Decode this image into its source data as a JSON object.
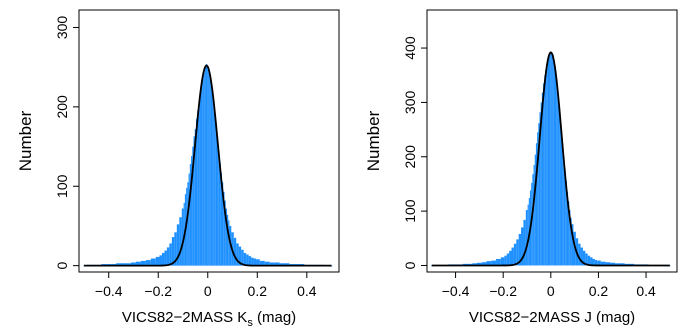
{
  "colors": {
    "histogram": "#1e90ff",
    "fit": "#000000",
    "frame": "#000000"
  },
  "chart_data": [
    {
      "type": "bar",
      "subtype": "histogram-with-gaussian-fit",
      "title": "",
      "xlabel_parts": [
        "VICS82−2MASS K",
        "s",
        " (mag)"
      ],
      "ylabel": "Number",
      "xlim": [
        -0.52,
        0.53
      ],
      "ylim": [
        -8,
        322
      ],
      "xticks": [
        -0.4,
        -0.2,
        0,
        0.2,
        0.4
      ],
      "xtick_labels": [
        "−0.4",
        "−0.2",
        "0",
        "0.2",
        "0.4"
      ],
      "yticks": [
        0,
        100,
        200,
        300
      ],
      "ytick_labels": [
        "0",
        "100",
        "200",
        "300"
      ],
      "fit": {
        "amplitude": 252,
        "mean": -0.005,
        "sigma": 0.046
      },
      "bin_width": 0.005,
      "bins": [
        [
          -0.5,
          0
        ],
        [
          -0.48,
          1
        ],
        [
          -0.46,
          1
        ],
        [
          -0.44,
          1
        ],
        [
          -0.42,
          2
        ],
        [
          -0.4,
          2
        ],
        [
          -0.38,
          2
        ],
        [
          -0.36,
          3
        ],
        [
          -0.34,
          3
        ],
        [
          -0.32,
          3
        ],
        [
          -0.3,
          4
        ],
        [
          -0.28,
          5
        ],
        [
          -0.26,
          6
        ],
        [
          -0.24,
          7
        ],
        [
          -0.22,
          9
        ],
        [
          -0.2,
          11
        ],
        [
          -0.19,
          13
        ],
        [
          -0.18,
          16
        ],
        [
          -0.17,
          19
        ],
        [
          -0.16,
          23
        ],
        [
          -0.15,
          28
        ],
        [
          -0.14,
          36
        ],
        [
          -0.13,
          42
        ],
        [
          -0.12,
          52
        ],
        [
          -0.11,
          61
        ],
        [
          -0.1,
          72
        ],
        [
          -0.095,
          79
        ],
        [
          -0.09,
          90
        ],
        [
          -0.085,
          98
        ],
        [
          -0.08,
          105
        ],
        [
          -0.075,
          116
        ],
        [
          -0.07,
          128
        ],
        [
          -0.065,
          138
        ],
        [
          -0.06,
          150
        ],
        [
          -0.055,
          163
        ],
        [
          -0.05,
          172
        ],
        [
          -0.045,
          185
        ],
        [
          -0.04,
          196
        ],
        [
          -0.035,
          205
        ],
        [
          -0.03,
          218
        ],
        [
          -0.025,
          228
        ],
        [
          -0.02,
          235
        ],
        [
          -0.015,
          243
        ],
        [
          -0.01,
          250
        ],
        [
          -0.005,
          254
        ],
        [
          0,
          250
        ],
        [
          0.005,
          245
        ],
        [
          0.01,
          236
        ],
        [
          0.015,
          226
        ],
        [
          0.02,
          214
        ],
        [
          0.025,
          200
        ],
        [
          0.03,
          186
        ],
        [
          0.035,
          172
        ],
        [
          0.04,
          158
        ],
        [
          0.045,
          145
        ],
        [
          0.05,
          130
        ],
        [
          0.055,
          117
        ],
        [
          0.06,
          105
        ],
        [
          0.065,
          93
        ],
        [
          0.07,
          82
        ],
        [
          0.075,
          72
        ],
        [
          0.08,
          64
        ],
        [
          0.085,
          57
        ],
        [
          0.09,
          50
        ],
        [
          0.1,
          42
        ],
        [
          0.11,
          35
        ],
        [
          0.12,
          28
        ],
        [
          0.13,
          24
        ],
        [
          0.14,
          20
        ],
        [
          0.15,
          16
        ],
        [
          0.16,
          14
        ],
        [
          0.17,
          12
        ],
        [
          0.18,
          10
        ],
        [
          0.19,
          9
        ],
        [
          0.2,
          8
        ],
        [
          0.22,
          6
        ],
        [
          0.24,
          5
        ],
        [
          0.26,
          4
        ],
        [
          0.28,
          4
        ],
        [
          0.3,
          3
        ],
        [
          0.32,
          3
        ],
        [
          0.34,
          2
        ],
        [
          0.36,
          2
        ],
        [
          0.38,
          2
        ],
        [
          0.4,
          1
        ],
        [
          0.42,
          1
        ],
        [
          0.44,
          1
        ],
        [
          0.46,
          1
        ],
        [
          0.48,
          0
        ],
        [
          0.5,
          0
        ]
      ]
    },
    {
      "type": "bar",
      "subtype": "histogram-with-gaussian-fit",
      "title": "",
      "xlabel_parts": [
        "VICS82−2MASS J (mag)"
      ],
      "ylabel": "Number",
      "xlim": [
        -0.52,
        0.53
      ],
      "ylim": [
        -12,
        470
      ],
      "xticks": [
        -0.4,
        -0.2,
        0,
        0.2,
        0.4
      ],
      "xtick_labels": [
        "−0.4",
        "−0.2",
        "0",
        "0.2",
        "0.4"
      ],
      "yticks": [
        0,
        100,
        200,
        300,
        400
      ],
      "ytick_labels": [
        "0",
        "100",
        "200",
        "300",
        "400"
      ],
      "fit": {
        "amplitude": 392,
        "mean": 0.0,
        "sigma": 0.046
      },
      "bin_width": 0.005,
      "bins": [
        [
          -0.5,
          0
        ],
        [
          -0.48,
          1
        ],
        [
          -0.46,
          1
        ],
        [
          -0.44,
          1
        ],
        [
          -0.42,
          2
        ],
        [
          -0.4,
          2
        ],
        [
          -0.38,
          2
        ],
        [
          -0.36,
          3
        ],
        [
          -0.34,
          3
        ],
        [
          -0.32,
          4
        ],
        [
          -0.3,
          5
        ],
        [
          -0.28,
          6
        ],
        [
          -0.26,
          8
        ],
        [
          -0.24,
          9
        ],
        [
          -0.22,
          12
        ],
        [
          -0.2,
          15
        ],
        [
          -0.19,
          18
        ],
        [
          -0.18,
          22
        ],
        [
          -0.17,
          27
        ],
        [
          -0.16,
          33
        ],
        [
          -0.15,
          40
        ],
        [
          -0.14,
          48
        ],
        [
          -0.13,
          58
        ],
        [
          -0.12,
          70
        ],
        [
          -0.11,
          84
        ],
        [
          -0.1,
          102
        ],
        [
          -0.095,
          112
        ],
        [
          -0.09,
          124
        ],
        [
          -0.085,
          138
        ],
        [
          -0.08,
          152
        ],
        [
          -0.075,
          168
        ],
        [
          -0.07,
          185
        ],
        [
          -0.065,
          204
        ],
        [
          -0.06,
          225
        ],
        [
          -0.055,
          245
        ],
        [
          -0.05,
          262
        ],
        [
          -0.045,
          282
        ],
        [
          -0.04,
          300
        ],
        [
          -0.035,
          318
        ],
        [
          -0.03,
          335
        ],
        [
          -0.025,
          350
        ],
        [
          -0.02,
          362
        ],
        [
          -0.015,
          374
        ],
        [
          -0.01,
          384
        ],
        [
          -0.005,
          390
        ],
        [
          0,
          392
        ],
        [
          0.005,
          392
        ],
        [
          0.01,
          388
        ],
        [
          0.015,
          376
        ],
        [
          0.02,
          360
        ],
        [
          0.025,
          340
        ],
        [
          0.03,
          318
        ],
        [
          0.035,
          296
        ],
        [
          0.04,
          272
        ],
        [
          0.045,
          248
        ],
        [
          0.05,
          224
        ],
        [
          0.055,
          200
        ],
        [
          0.06,
          178
        ],
        [
          0.065,
          156
        ],
        [
          0.07,
          136
        ],
        [
          0.075,
          118
        ],
        [
          0.08,
          102
        ],
        [
          0.085,
          88
        ],
        [
          0.09,
          76
        ],
        [
          0.1,
          62
        ],
        [
          0.11,
          50
        ],
        [
          0.12,
          40
        ],
        [
          0.13,
          33
        ],
        [
          0.14,
          27
        ],
        [
          0.15,
          22
        ],
        [
          0.16,
          18
        ],
        [
          0.17,
          15
        ],
        [
          0.18,
          12
        ],
        [
          0.19,
          10
        ],
        [
          0.2,
          9
        ],
        [
          0.22,
          7
        ],
        [
          0.24,
          6
        ],
        [
          0.26,
          5
        ],
        [
          0.28,
          4
        ],
        [
          0.3,
          4
        ],
        [
          0.32,
          3
        ],
        [
          0.34,
          3
        ],
        [
          0.36,
          2
        ],
        [
          0.38,
          2
        ],
        [
          0.4,
          2
        ],
        [
          0.42,
          1
        ],
        [
          0.44,
          1
        ],
        [
          0.46,
          1
        ],
        [
          0.48,
          0
        ],
        [
          0.5,
          0
        ]
      ]
    }
  ]
}
